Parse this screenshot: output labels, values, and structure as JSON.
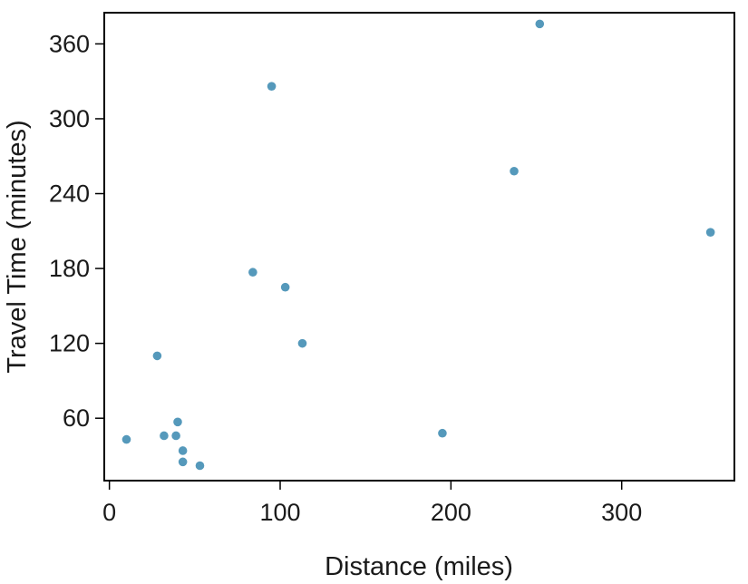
{
  "chart_data": {
    "type": "scatter",
    "title": "",
    "xlabel": "Distance (miles)",
    "ylabel": "Travel Time (minutes)",
    "xlim": [
      -3,
      366
    ],
    "ylim": [
      10,
      385
    ],
    "xticks": [
      0,
      100,
      200,
      300
    ],
    "yticks": [
      60,
      120,
      180,
      240,
      300,
      360
    ],
    "grid": false,
    "legend": "none",
    "point_color": "#5599bb",
    "points": [
      {
        "x": 10,
        "y": 43
      },
      {
        "x": 28,
        "y": 110
      },
      {
        "x": 32,
        "y": 46
      },
      {
        "x": 39,
        "y": 46
      },
      {
        "x": 40,
        "y": 57
      },
      {
        "x": 43,
        "y": 34
      },
      {
        "x": 43,
        "y": 25
      },
      {
        "x": 53,
        "y": 22
      },
      {
        "x": 84,
        "y": 177
      },
      {
        "x": 95,
        "y": 326
      },
      {
        "x": 103,
        "y": 165
      },
      {
        "x": 113,
        "y": 120
      },
      {
        "x": 195,
        "y": 48
      },
      {
        "x": 237,
        "y": 258
      },
      {
        "x": 252,
        "y": 376
      },
      {
        "x": 352,
        "y": 209
      }
    ]
  }
}
